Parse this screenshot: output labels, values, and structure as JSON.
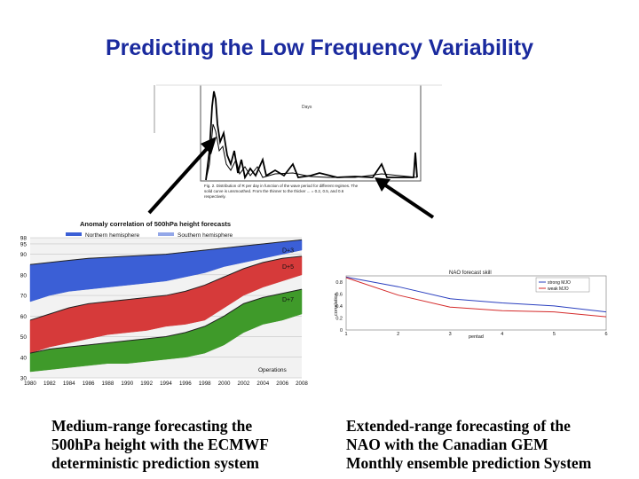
{
  "slide": {
    "title": "Predicting the Low Frequency Variability",
    "caption_left": [
      "Medium-range forecasting  the",
      "500hPa height with the ECMWF",
      "deterministic prediction system"
    ],
    "caption_right": [
      "Extended-range forecasting of the",
      "NAO with the Canadian GEM",
      "Monthly ensemble prediction System"
    ]
  },
  "colors": {
    "title": "#1a2a9e",
    "d3": "#3b5fd6",
    "d5": "#d63a3a",
    "d7": "#3f9a2a",
    "arrow": "#000000"
  },
  "top_figure": {
    "xlabel": "Days",
    "caption_lines": [
      "Fig. 2. Distribution of R per day in function of the wave period for different regimes. The",
      "solid curve is unsmoothed. From the thinner to the thicker ... = 0.2, 0.5, and 0.6",
      "respectively."
    ]
  },
  "acc_chart": {
    "title": "Anomaly correlation of 500hPa height forecasts",
    "legend": [
      "Northern hemisphere",
      "Southern hemisphere"
    ],
    "chart_data": {
      "type": "area",
      "title": "Anomaly correlation of 500hPa height forecasts",
      "x": [
        1980,
        1982,
        1984,
        1986,
        1988,
        1990,
        1992,
        1994,
        1996,
        1998,
        2000,
        2002,
        2004,
        2006,
        2008
      ],
      "ylim": [
        30,
        98
      ],
      "yticks": [
        30,
        40,
        50,
        60,
        70,
        80,
        90,
        95,
        98
      ],
      "series": [
        {
          "name": "D+3",
          "upper": [
            85,
            86,
            87,
            88,
            88.5,
            89,
            89.5,
            90,
            91,
            92,
            93,
            94,
            95,
            96,
            97
          ],
          "lower": [
            67,
            70,
            72,
            73,
            74,
            75,
            76,
            77,
            79,
            81,
            84,
            86,
            88,
            90,
            92
          ]
        },
        {
          "name": "D+5",
          "upper": [
            58,
            61,
            64,
            66,
            67,
            68,
            69,
            70,
            72,
            75,
            79,
            83,
            86,
            88,
            89
          ],
          "lower": [
            42,
            45,
            47,
            49,
            51,
            52,
            53,
            55,
            56,
            58,
            64,
            70,
            74,
            77,
            80
          ]
        },
        {
          "name": "D+7",
          "upper": [
            42,
            44,
            45,
            46,
            47,
            48,
            49,
            50,
            52,
            55,
            60,
            66,
            69,
            71,
            73
          ],
          "lower": [
            33,
            34,
            35,
            36,
            37,
            37,
            38,
            39,
            40,
            42,
            46,
            52,
            56,
            58,
            61
          ]
        }
      ],
      "annotations": [
        "Operations"
      ]
    }
  },
  "nao_chart": {
    "title": "NAO forecast skill",
    "ylabel": "correlation",
    "xlabel": "pentad",
    "legend": [
      "strong MJO",
      "weak MJO"
    ],
    "chart_data": {
      "type": "line",
      "title": "NAO forecast skill",
      "xlabel": "pentad",
      "ylabel": "correlation",
      "x": [
        1,
        2,
        3,
        4,
        5,
        6
      ],
      "xticks": [
        1,
        2,
        3,
        4,
        5,
        6
      ],
      "yticks": [
        0,
        0.2,
        0.4,
        0.6,
        0.8
      ],
      "ylim": [
        0,
        0.9
      ],
      "series": [
        {
          "name": "strong MJO",
          "values": [
            0.88,
            0.72,
            0.52,
            0.45,
            0.4,
            0.3
          ],
          "color": "#2a3fbf"
        },
        {
          "name": "weak MJO",
          "values": [
            0.87,
            0.58,
            0.38,
            0.32,
            0.3,
            0.22
          ],
          "color": "#d42a2a"
        }
      ]
    }
  }
}
